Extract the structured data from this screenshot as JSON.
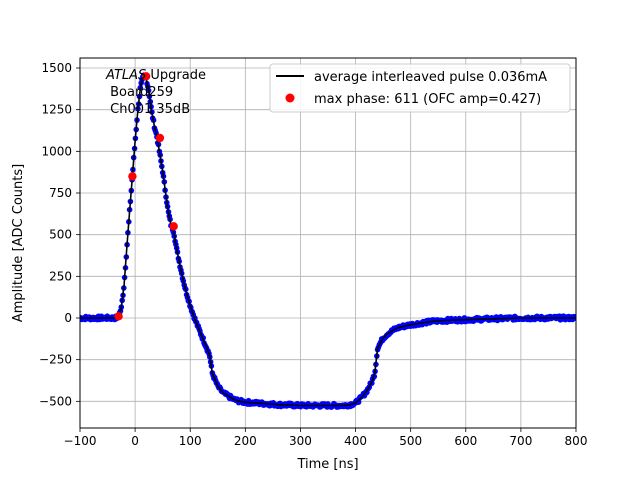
{
  "chart_data": {
    "type": "scatter",
    "xlabel": "Time [ns]",
    "ylabel": "Amplitude [ADC Counts]",
    "xlim": [
      -100,
      800
    ],
    "ylim": [
      -660,
      1560
    ],
    "xticks": [
      -100,
      0,
      100,
      200,
      300,
      400,
      500,
      600,
      700,
      800
    ],
    "yticks": [
      -500,
      -250,
      0,
      250,
      500,
      750,
      1000,
      1250,
      1500
    ],
    "grid": true,
    "legend_position": "top-right",
    "annotation": {
      "line1_italic": "ATLAS",
      "line1_rest": " Upgrade",
      "line2": " Board259",
      "line3": " Ch001 35dB"
    },
    "series": [
      {
        "name": "average interleaved pulse 0.036mA",
        "kind": "line",
        "color": "#000000",
        "x": [
          -100,
          -50,
          -35,
          -30,
          -25,
          -20,
          -15,
          -10,
          -5,
          0,
          5,
          10,
          15,
          20,
          25,
          30,
          35,
          40,
          45,
          50,
          55,
          60,
          65,
          70,
          75,
          80,
          85,
          90,
          95,
          100,
          105,
          110,
          115,
          120,
          125,
          130,
          135,
          140,
          145,
          150,
          160,
          170,
          180,
          190,
          200,
          220,
          240,
          260,
          280,
          300,
          320,
          340,
          360,
          380,
          390,
          400,
          410,
          420,
          430,
          435,
          440,
          450,
          460,
          470,
          480,
          500,
          520,
          540,
          560,
          600,
          650,
          700,
          750,
          800
        ],
        "y": [
          0,
          0,
          0,
          10,
          60,
          200,
          420,
          640,
          850,
          1060,
          1250,
          1390,
          1450,
          1440,
          1360,
          1240,
          1150,
          1080,
          980,
          880,
          760,
          640,
          560,
          520,
          420,
          340,
          260,
          190,
          130,
          75,
          25,
          -20,
          -60,
          -100,
          -140,
          -180,
          -220,
          -330,
          -370,
          -410,
          -450,
          -470,
          -490,
          -500,
          -505,
          -510,
          -515,
          -520,
          -522,
          -525,
          -525,
          -525,
          -525,
          -525,
          -520,
          -510,
          -480,
          -440,
          -380,
          -330,
          -180,
          -120,
          -90,
          -70,
          -55,
          -40,
          -30,
          -20,
          -15,
          -10,
          -5,
          0,
          0,
          0
        ]
      },
      {
        "name": "samples",
        "kind": "points",
        "color": "#0000ff"
      },
      {
        "name": "max phase: 611 (OFC amp=0.427)",
        "kind": "markers",
        "color": "#ff0000",
        "x": [
          -30,
          -5,
          20,
          45,
          70
        ],
        "y": [
          10,
          850,
          1450,
          1080,
          550
        ]
      }
    ]
  }
}
